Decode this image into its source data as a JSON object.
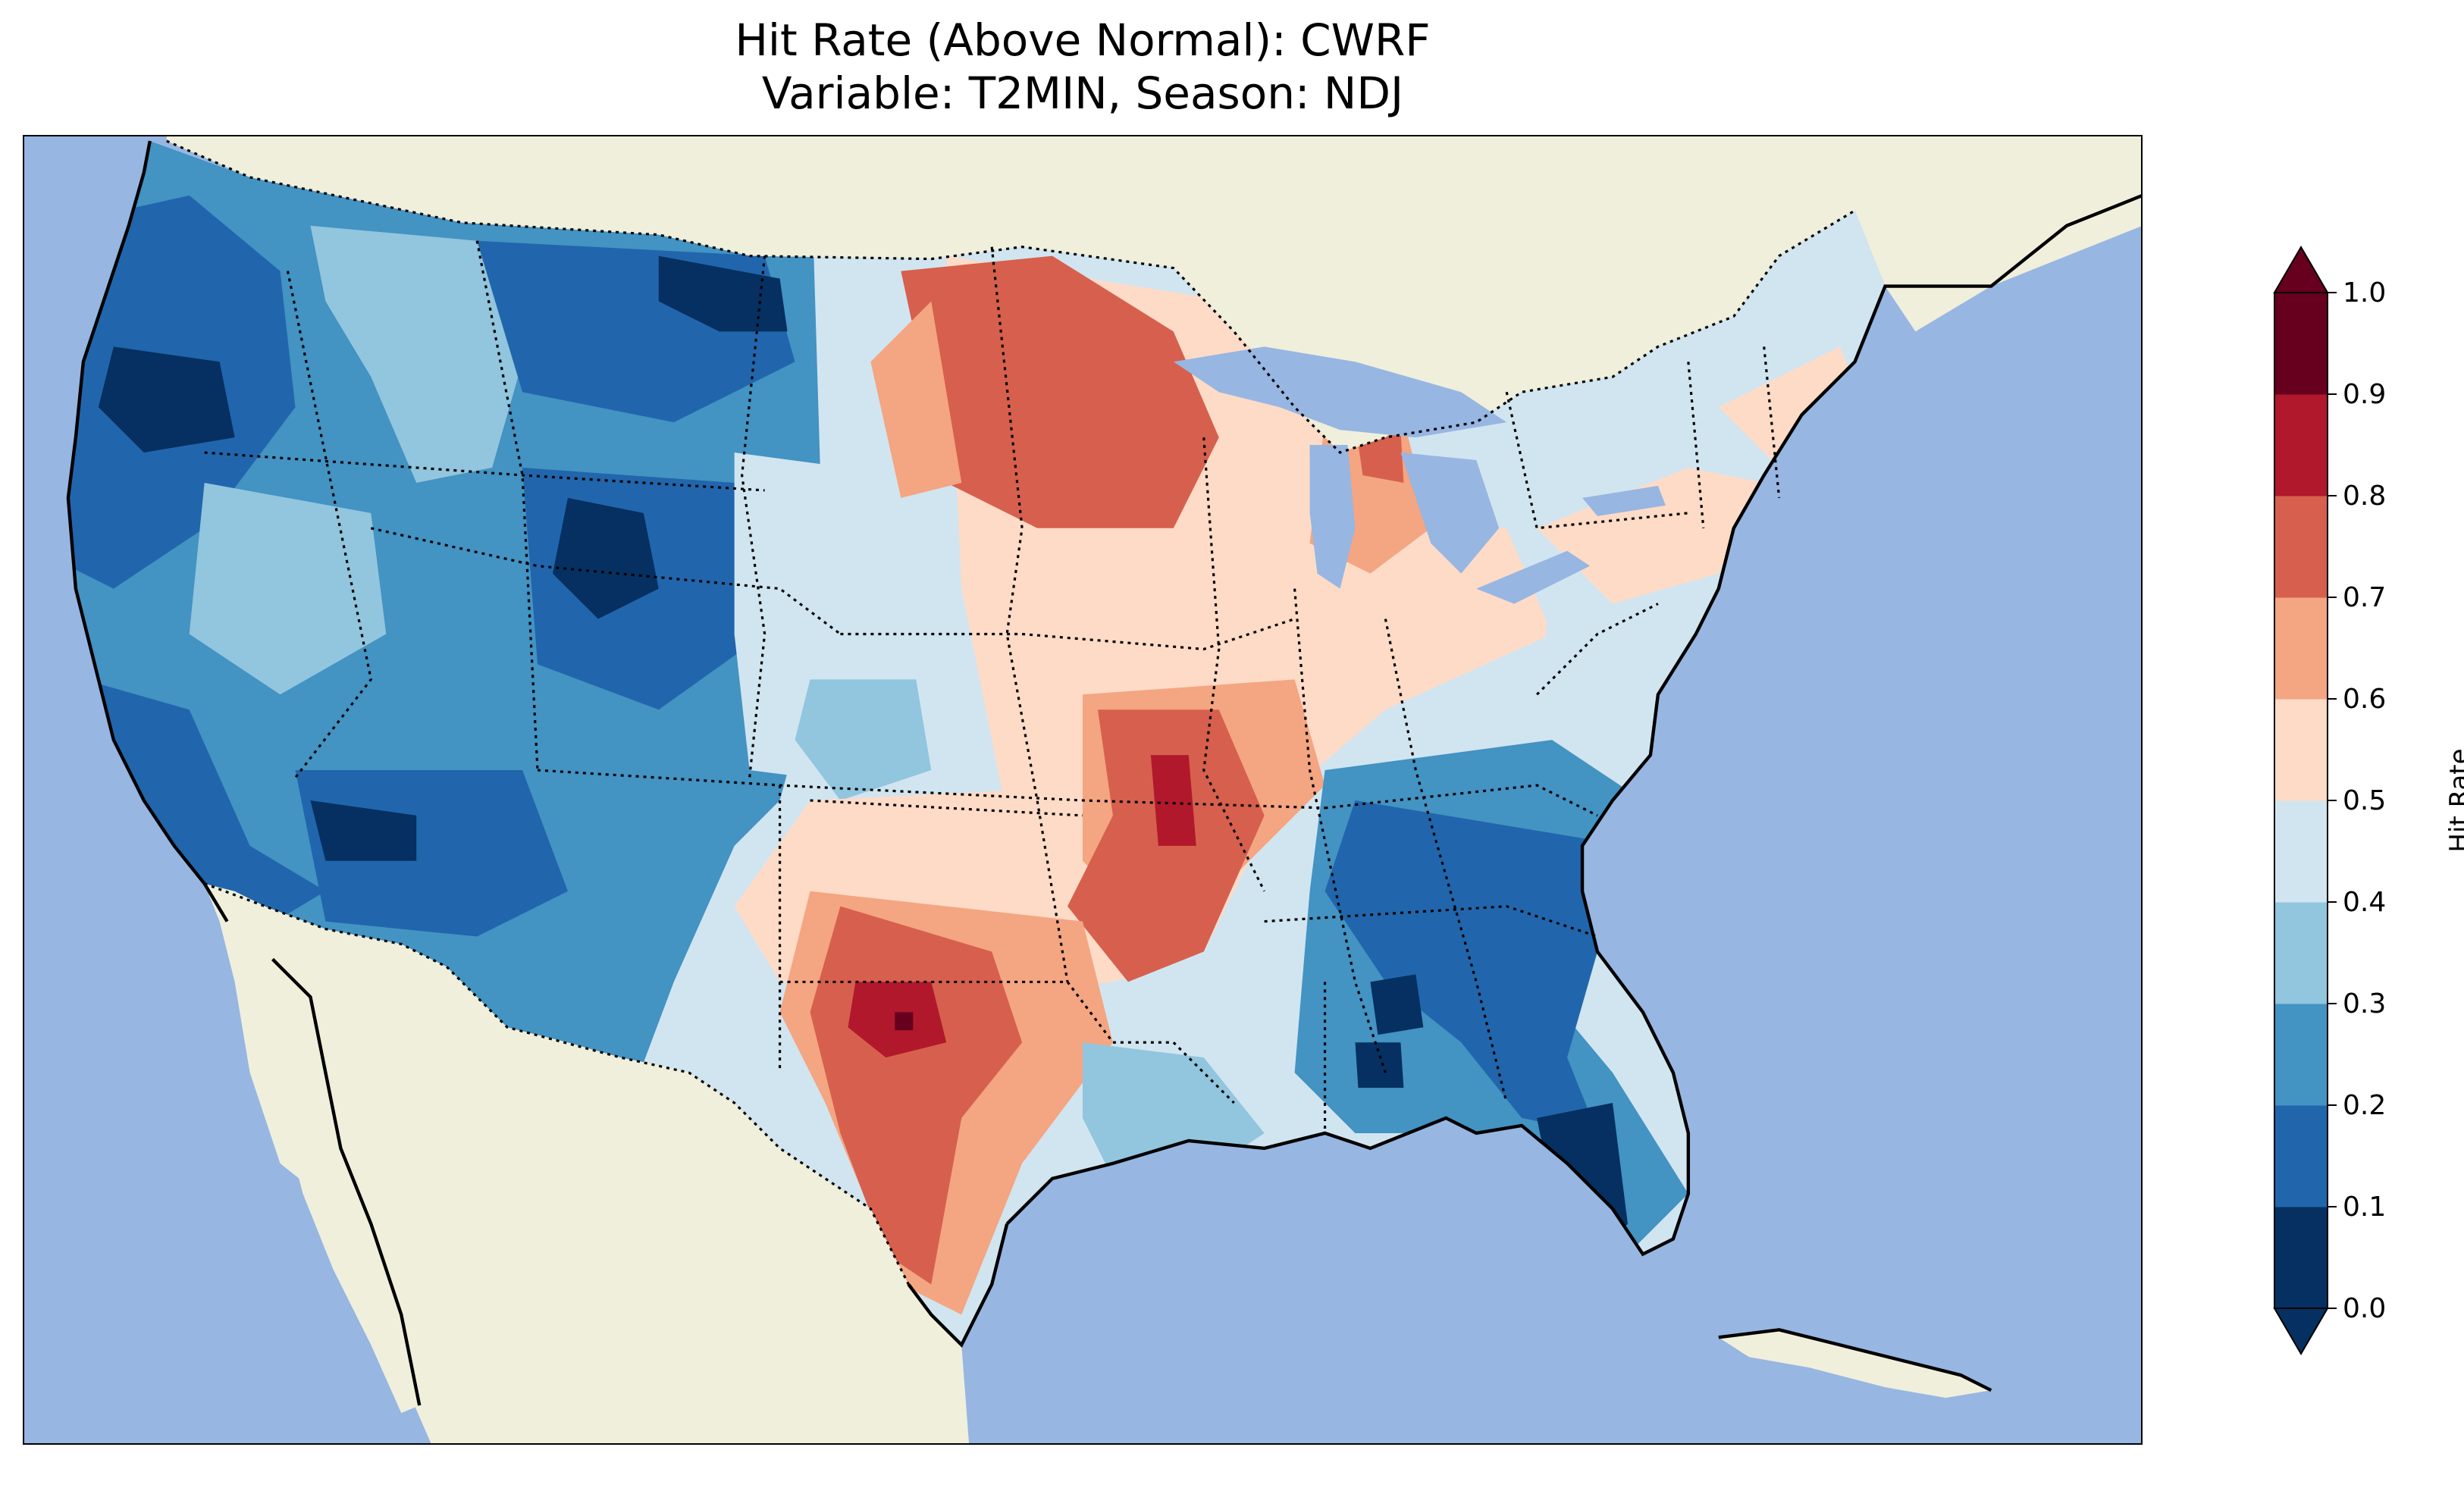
{
  "title": {
    "line1": "Hit Rate (Above Normal): CWRF",
    "line2": "Variable: T2MIN, Season: NDJ"
  },
  "colors": {
    "ocean": "#97b6e2",
    "land": "#efefdc",
    "bins": [
      "#053061",
      "#2166ac",
      "#4393c3",
      "#92c5de",
      "#d1e5f0",
      "#fddbc7",
      "#f4a582",
      "#d6604d",
      "#b2182b",
      "#67001f"
    ]
  },
  "colorbar": {
    "label": "Hit Rate",
    "ticks": [
      "0.0",
      "0.1",
      "0.2",
      "0.3",
      "0.4",
      "0.5",
      "0.6",
      "0.7",
      "0.8",
      "0.9",
      "1.0"
    ],
    "range": [
      0.0,
      1.0
    ],
    "extend": "both"
  },
  "map": {
    "variable": "T2MIN",
    "season": "NDJ",
    "model": "CWRF",
    "region": "Contiguous United States"
  }
}
